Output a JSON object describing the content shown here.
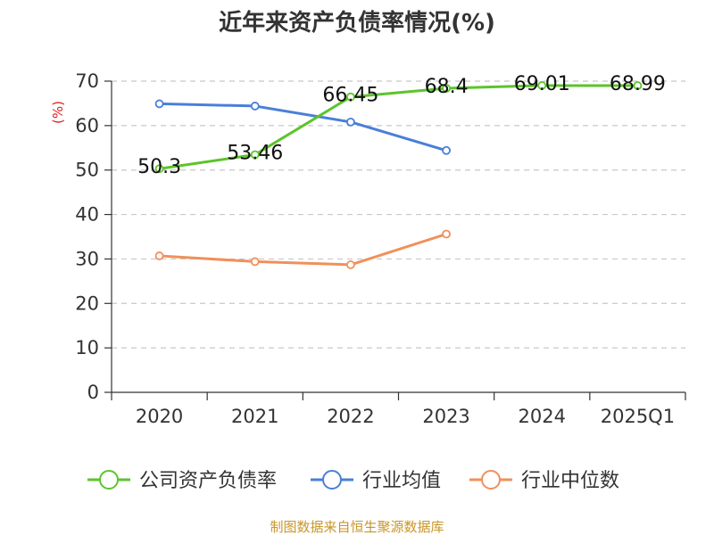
{
  "chart_data": {
    "type": "line",
    "title": "近年来资产负债率情况(%)",
    "ylabel": "(%)",
    "xlabel": "",
    "categories": [
      "2020",
      "2021",
      "2022",
      "2023",
      "2024",
      "2025Q1"
    ],
    "ylim": [
      0,
      70
    ],
    "yticks": [
      0,
      10,
      20,
      30,
      40,
      50,
      60,
      70
    ],
    "grid": true,
    "legend": "bottom",
    "series": [
      {
        "name": "公司资产负债率",
        "color": "#5cc42c",
        "values": [
          50.3,
          53.46,
          66.45,
          68.4,
          69.01,
          68.99
        ],
        "labels": [
          "50.3",
          "53.46",
          "66.45",
          "68.4",
          "69.01",
          "68.99"
        ]
      },
      {
        "name": "行业均值",
        "color": "#4a7fd8",
        "values": [
          64.9,
          64.4,
          60.8,
          54.4,
          null,
          null
        ]
      },
      {
        "name": "行业中位数",
        "color": "#f0905a",
        "values": [
          30.7,
          29.4,
          28.7,
          35.6,
          null,
          null
        ]
      }
    ],
    "source": "制图数据来自恒生聚源数据库"
  }
}
